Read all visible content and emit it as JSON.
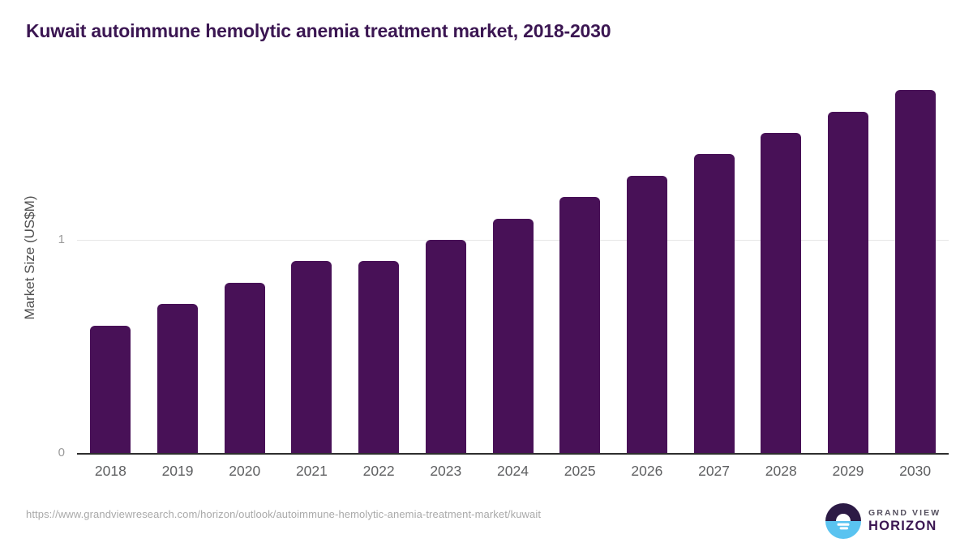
{
  "page": {
    "title": "Kuwait autoimmune hemolytic anemia treatment market, 2018-2030"
  },
  "chart_data": {
    "type": "bar",
    "title": "Kuwait autoimmune hemolytic anemia treatment market, 2018-2030",
    "categories": [
      "2018",
      "2019",
      "2020",
      "2021",
      "2022",
      "2023",
      "2024",
      "2025",
      "2026",
      "2027",
      "2028",
      "2029",
      "2030"
    ],
    "values": [
      0.6,
      0.7,
      0.8,
      0.9,
      0.9,
      1.0,
      1.1,
      1.2,
      1.3,
      1.4,
      1.5,
      1.6,
      1.7
    ],
    "xlabel": "",
    "ylabel": "Market Size (US$M)",
    "ylim": [
      0,
      1.75
    ],
    "yticks": [
      0,
      1
    ],
    "ytick_labels": [
      "0",
      "1"
    ],
    "grid": "single horizontal gridline at y=1",
    "legend": "none",
    "bar_color": "#481157"
  },
  "footer": {
    "url": "https://www.grandviewresearch.com/horizon/outlook/autoimmune-hemolytic-anemia-treatment-market/kuwait",
    "brand": {
      "top": "GRAND VIEW",
      "bottom": "HORIZON"
    }
  },
  "colors": {
    "bar": "#481157",
    "title_text": "#3b1652",
    "axis_line": "#2e2e2e",
    "gridline": "#e7e7e7",
    "y_tick_text": "#9a9a9a",
    "x_tick_text": "#5f6062",
    "url_text": "#a9a9a9",
    "logo_dark": "#2c1a45",
    "logo_blue": "#5ac3f0"
  }
}
